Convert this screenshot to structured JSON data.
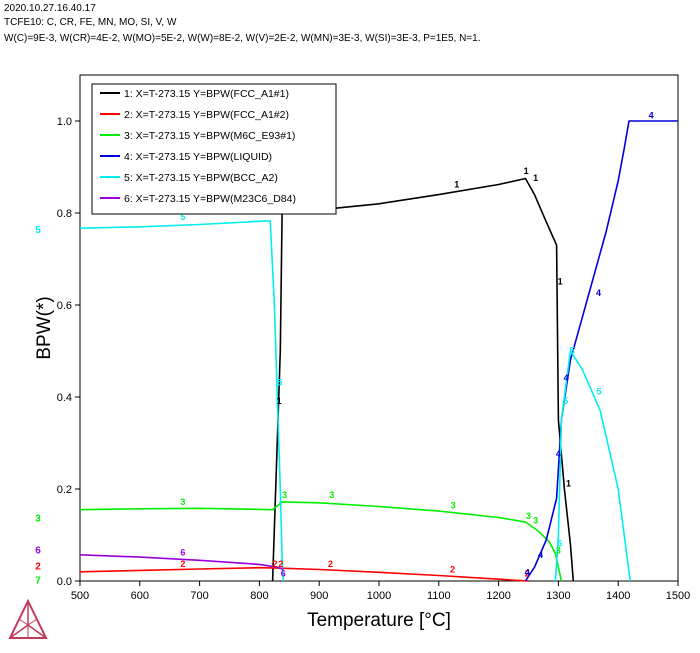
{
  "header": {
    "line1": "2020.10.27.16.40.17",
    "line2": "TCFE10: C, CR, FE, MN, MO, SI, V, W",
    "line3": "W(C)=9E-3, W(CR)=4E-2, W(MO)=5E-2, W(W)=8E-2, W(V)=2E-2, W(MN)=3E-3, W(SI)=3E-3, P=1E5, N=1."
  },
  "colors": {
    "s1": "#000000",
    "s2": "#ff0000",
    "s3": "#00ee00",
    "s4": "#0000dd",
    "s5": "#00eeee",
    "s6": "#9900dd"
  },
  "logo_icon": "thermo-calc-triangle-logo",
  "chart_data": {
    "type": "line",
    "title": "",
    "xlabel": "Temperature [°C]",
    "ylabel": "BPW(*)",
    "xlim": [
      500,
      1500
    ],
    "ylim": [
      0,
      1.1
    ],
    "xticks": [
      "500",
      "600",
      "700",
      "800",
      "900",
      "1000",
      "1100",
      "1200",
      "1300",
      "1400",
      "1500"
    ],
    "yticks": [
      "0.0",
      "0.2",
      "0.4",
      "0.6",
      "0.8",
      "1.0"
    ],
    "legend_position": "top-left",
    "series": [
      {
        "id": "1",
        "name": "1:  X=T-273.15  Y=BPW(FCC_A1#1)",
        "color": "#000000",
        "x": [
          822,
          835,
          838,
          900,
          1000,
          1100,
          1200,
          1245,
          1260,
          1280,
          1297,
          1300,
          1310,
          1320,
          1325
        ],
        "y": [
          0,
          0.5,
          0.8,
          0.807,
          0.82,
          0.84,
          0.862,
          0.875,
          0.84,
          0.78,
          0.73,
          0.35,
          0.2,
          0.08,
          0
        ]
      },
      {
        "id": "2",
        "name": "2:  X=T-273.15  Y=BPW(FCC_A1#2)",
        "color": "#ff0000",
        "x": [
          500,
          600,
          700,
          800,
          830,
          900,
          1000,
          1100,
          1200,
          1250
        ],
        "y": [
          0.02,
          0.023,
          0.026,
          0.029,
          0.028,
          0.025,
          0.019,
          0.012,
          0.004,
          0
        ]
      },
      {
        "id": "3",
        "name": "3:  X=T-273.15  Y=BPW(M6C_E93#1)",
        "color": "#00ee00",
        "x": [
          500,
          600,
          700,
          822,
          838,
          900,
          1000,
          1100,
          1200,
          1245,
          1265,
          1285,
          1295,
          1300,
          1305
        ],
        "y": [
          0.155,
          0.157,
          0.158,
          0.155,
          0.172,
          0.17,
          0.162,
          0.152,
          0.138,
          0.128,
          0.11,
          0.085,
          0.06,
          0.03,
          0
        ]
      },
      {
        "id": "4",
        "name": "4:  X=T-273.15  Y=BPW(LIQUID)",
        "color": "#0000dd",
        "x": [
          1245,
          1260,
          1280,
          1297,
          1305,
          1320,
          1350,
          1380,
          1400,
          1410,
          1418,
          1500
        ],
        "y": [
          0,
          0.03,
          0.09,
          0.18,
          0.35,
          0.48,
          0.62,
          0.76,
          0.87,
          0.94,
          1.0,
          1.0
        ]
      },
      {
        "id": "5",
        "name": "5:  X=T-273.15  Y=BPW(BCC_A2)",
        "color": "#00eeee",
        "x": [
          500,
          600,
          700,
          800,
          818,
          825,
          830,
          835,
          838,
          840
        ],
        "y": [
          0.767,
          0.77,
          0.775,
          0.782,
          0.783,
          0.6,
          0.4,
          0.2,
          0.05,
          0
        ]
      },
      {
        "id": "5b",
        "name": "",
        "color": "#00eeee",
        "x": [
          1295,
          1300,
          1305,
          1320,
          1340,
          1370,
          1400,
          1420
        ],
        "y": [
          0,
          0.1,
          0.35,
          0.5,
          0.46,
          0.37,
          0.2,
          0
        ]
      },
      {
        "id": "6",
        "name": "6:  X=T-273.15  Y=BPW(M23C6_D84)",
        "color": "#9900dd",
        "x": [
          500,
          600,
          700,
          800,
          830,
          840
        ],
        "y": [
          0.057,
          0.052,
          0.045,
          0.036,
          0.03,
          0.025
        ]
      }
    ],
    "curve_labels": [
      {
        "t": "1",
        "c": "s1",
        "x": 838,
        "y": 0.81
      },
      {
        "t": "1",
        "c": "s1",
        "x": 920,
        "y": 0.82
      },
      {
        "t": "1",
        "c": "s1",
        "x": 1130,
        "y": 0.855
      },
      {
        "t": "1",
        "c": "s1",
        "x": 1246,
        "y": 0.885
      },
      {
        "t": "1",
        "c": "s1",
        "x": 1262,
        "y": 0.87
      },
      {
        "t": "1",
        "c": "s1",
        "x": 1303,
        "y": 0.645
      },
      {
        "t": "1",
        "c": "s1",
        "x": 1317,
        "y": 0.205
      },
      {
        "t": "1",
        "c": "s1",
        "x": 833,
        "y": 0.385
      },
      {
        "t": "2",
        "c": "s2",
        "x": 672,
        "y": 0.03
      },
      {
        "t": "2",
        "c": "s2",
        "x": 826,
        "y": 0.03
      },
      {
        "t": "2",
        "c": "s2",
        "x": 836,
        "y": 0.03
      },
      {
        "t": "2",
        "c": "s2",
        "x": 919,
        "y": 0.03
      },
      {
        "t": "2",
        "c": "s2",
        "x": 1123,
        "y": 0.018
      },
      {
        "t": "2",
        "c": "s2",
        "x": 1248,
        "y": 0.01
      },
      {
        "t": "3",
        "c": "s3",
        "x": 672,
        "y": 0.165
      },
      {
        "t": "3",
        "c": "s3",
        "x": 842,
        "y": 0.18
      },
      {
        "t": "3",
        "c": "s3",
        "x": 921,
        "y": 0.18
      },
      {
        "t": "3",
        "c": "s3",
        "x": 1124,
        "y": 0.158
      },
      {
        "t": "3",
        "c": "s3",
        "x": 1250,
        "y": 0.135
      },
      {
        "t": "3",
        "c": "s3",
        "x": 1262,
        "y": 0.125
      },
      {
        "t": "3",
        "c": "s3",
        "x": 1300,
        "y": 0.06
      },
      {
        "t": "4",
        "c": "s4",
        "x": 1455,
        "y": 1.005
      },
      {
        "t": "4",
        "c": "s4",
        "x": 1367,
        "y": 0.62
      },
      {
        "t": "4",
        "c": "s4",
        "x": 1313,
        "y": 0.435
      },
      {
        "t": "4",
        "c": "s4",
        "x": 1300,
        "y": 0.27
      },
      {
        "t": "4",
        "c": "s4",
        "x": 1270,
        "y": 0.05
      },
      {
        "t": "4",
        "c": "s4",
        "x": 1248,
        "y": 0.012
      },
      {
        "t": "5",
        "c": "s5",
        "x": 672,
        "y": 0.785
      },
      {
        "t": "5",
        "c": "s5",
        "x": 834,
        "y": 0.425
      },
      {
        "t": "5",
        "c": "s5",
        "x": 1323,
        "y": 0.495
      },
      {
        "t": "5",
        "c": "s5",
        "x": 1368,
        "y": 0.405
      },
      {
        "t": "5",
        "c": "s5",
        "x": 1312,
        "y": 0.385
      },
      {
        "t": "5",
        "c": "s5",
        "x": 1302,
        "y": 0.075
      },
      {
        "t": "6",
        "c": "s6",
        "x": 672,
        "y": 0.055
      },
      {
        "t": "6",
        "c": "s6",
        "x": 840,
        "y": 0.01
      }
    ],
    "side_labels": [
      {
        "t": "5",
        "c": "s5",
        "y": 0.765
      },
      {
        "t": "3",
        "c": "s3",
        "y": 0.138
      },
      {
        "t": "6",
        "c": "s6",
        "y": 0.068
      },
      {
        "t": "2",
        "c": "s2",
        "y": 0.034
      },
      {
        "t": "7",
        "c": "s3",
        "y": 0.003
      }
    ]
  }
}
